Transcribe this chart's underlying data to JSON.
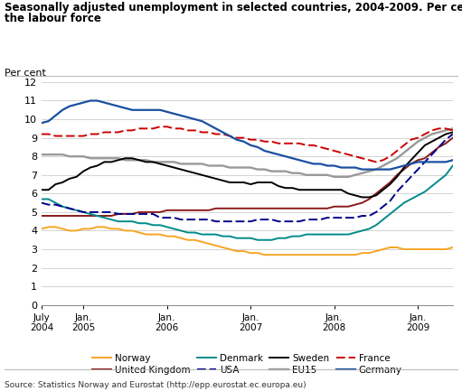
{
  "title_line1": "Seasonally adjusted unemployment in selected countries, 2004-2009. Per cent of",
  "title_line2": "the labour force",
  "ylabel": "Per cent",
  "source": "Source: Statistics Norway and Eurostat (http://epp.eurostat.ec.europa.eu)",
  "ylim": [
    0,
    12
  ],
  "yticks": [
    0,
    1,
    2,
    3,
    4,
    5,
    6,
    7,
    8,
    9,
    10,
    11,
    12
  ],
  "xtick_labels": [
    "July\n2004",
    "Jan.\n2005",
    "Jan.\n2006",
    "Jan.\n2007",
    "Jan.\n2008",
    "Jan.\n2009"
  ],
  "xtick_positions": [
    0,
    6,
    18,
    30,
    42,
    54
  ],
  "n_months": 60,
  "norway": [
    4.1,
    4.2,
    4.2,
    4.1,
    4.0,
    4.0,
    4.1,
    4.1,
    4.2,
    4.2,
    4.1,
    4.1,
    4.0,
    4.0,
    3.9,
    3.8,
    3.8,
    3.8,
    3.7,
    3.7,
    3.6,
    3.5,
    3.5,
    3.4,
    3.3,
    3.2,
    3.1,
    3.0,
    2.9,
    2.9,
    2.8,
    2.8,
    2.7,
    2.7,
    2.7,
    2.7,
    2.7,
    2.7,
    2.7,
    2.7,
    2.7,
    2.7,
    2.7,
    2.7,
    2.7,
    2.7,
    2.8,
    2.8,
    2.9,
    3.0,
    3.1,
    3.1,
    3.0,
    3.0,
    3.0,
    3.0,
    3.0,
    3.0,
    3.0,
    3.1
  ],
  "uk": [
    4.8,
    4.8,
    4.8,
    4.8,
    4.8,
    4.8,
    4.8,
    4.8,
    4.8,
    4.8,
    4.8,
    4.9,
    4.9,
    4.9,
    5.0,
    5.0,
    5.0,
    5.0,
    5.1,
    5.1,
    5.1,
    5.1,
    5.1,
    5.1,
    5.1,
    5.2,
    5.2,
    5.2,
    5.2,
    5.2,
    5.2,
    5.2,
    5.2,
    5.2,
    5.2,
    5.2,
    5.2,
    5.2,
    5.2,
    5.2,
    5.2,
    5.2,
    5.3,
    5.3,
    5.3,
    5.4,
    5.5,
    5.7,
    6.0,
    6.3,
    6.6,
    7.0,
    7.3,
    7.6,
    7.8,
    7.9,
    8.2,
    8.5,
    8.7,
    9.0
  ],
  "denmark": [
    5.7,
    5.7,
    5.5,
    5.3,
    5.2,
    5.1,
    5.0,
    4.9,
    4.8,
    4.7,
    4.6,
    4.5,
    4.5,
    4.5,
    4.4,
    4.4,
    4.3,
    4.3,
    4.2,
    4.1,
    4.0,
    3.9,
    3.9,
    3.8,
    3.8,
    3.8,
    3.7,
    3.7,
    3.6,
    3.6,
    3.6,
    3.5,
    3.5,
    3.5,
    3.6,
    3.6,
    3.7,
    3.7,
    3.8,
    3.8,
    3.8,
    3.8,
    3.8,
    3.8,
    3.8,
    3.9,
    4.0,
    4.1,
    4.3,
    4.6,
    4.9,
    5.2,
    5.5,
    5.7,
    5.9,
    6.1,
    6.4,
    6.7,
    7.0,
    7.5
  ],
  "usa": [
    5.5,
    5.4,
    5.4,
    5.3,
    5.2,
    5.1,
    5.0,
    5.0,
    5.0,
    5.0,
    5.0,
    4.9,
    4.9,
    4.9,
    4.9,
    4.9,
    4.9,
    4.7,
    4.7,
    4.7,
    4.6,
    4.6,
    4.6,
    4.6,
    4.6,
    4.5,
    4.5,
    4.5,
    4.5,
    4.5,
    4.5,
    4.6,
    4.6,
    4.6,
    4.5,
    4.5,
    4.5,
    4.5,
    4.6,
    4.6,
    4.6,
    4.7,
    4.7,
    4.7,
    4.7,
    4.7,
    4.8,
    4.8,
    5.0,
    5.3,
    5.6,
    6.1,
    6.5,
    6.9,
    7.3,
    7.7,
    8.1,
    8.5,
    8.9,
    9.2
  ],
  "sweden": [
    6.2,
    6.2,
    6.5,
    6.6,
    6.8,
    6.9,
    7.2,
    7.4,
    7.5,
    7.7,
    7.7,
    7.8,
    7.9,
    7.9,
    7.8,
    7.7,
    7.7,
    7.6,
    7.5,
    7.4,
    7.3,
    7.2,
    7.1,
    7.0,
    6.9,
    6.8,
    6.7,
    6.6,
    6.6,
    6.6,
    6.5,
    6.6,
    6.6,
    6.6,
    6.4,
    6.3,
    6.3,
    6.2,
    6.2,
    6.2,
    6.2,
    6.2,
    6.2,
    6.2,
    6.0,
    5.9,
    5.8,
    5.8,
    5.9,
    6.2,
    6.5,
    6.9,
    7.4,
    7.8,
    8.2,
    8.6,
    8.8,
    9.0,
    9.2,
    9.3
  ],
  "eu15": [
    8.1,
    8.1,
    8.1,
    8.1,
    8.0,
    8.0,
    8.0,
    7.9,
    7.9,
    7.9,
    7.9,
    7.9,
    7.8,
    7.8,
    7.8,
    7.8,
    7.7,
    7.7,
    7.7,
    7.7,
    7.6,
    7.6,
    7.6,
    7.6,
    7.5,
    7.5,
    7.5,
    7.4,
    7.4,
    7.4,
    7.4,
    7.3,
    7.3,
    7.2,
    7.2,
    7.2,
    7.1,
    7.1,
    7.0,
    7.0,
    7.0,
    7.0,
    6.9,
    6.9,
    6.9,
    7.0,
    7.1,
    7.2,
    7.3,
    7.5,
    7.7,
    7.9,
    8.2,
    8.5,
    8.8,
    9.0,
    9.2,
    9.3,
    9.4,
    9.5
  ],
  "france": [
    9.2,
    9.2,
    9.1,
    9.1,
    9.1,
    9.1,
    9.1,
    9.2,
    9.2,
    9.3,
    9.3,
    9.3,
    9.4,
    9.4,
    9.5,
    9.5,
    9.5,
    9.6,
    9.6,
    9.5,
    9.5,
    9.4,
    9.4,
    9.3,
    9.3,
    9.2,
    9.2,
    9.1,
    9.0,
    9.0,
    8.9,
    8.9,
    8.8,
    8.8,
    8.7,
    8.7,
    8.7,
    8.7,
    8.6,
    8.6,
    8.5,
    8.4,
    8.3,
    8.2,
    8.1,
    8.0,
    7.9,
    7.8,
    7.7,
    7.8,
    8.0,
    8.3,
    8.6,
    8.9,
    9.0,
    9.2,
    9.4,
    9.5,
    9.5,
    9.4
  ],
  "germany": [
    9.8,
    9.9,
    10.2,
    10.5,
    10.7,
    10.8,
    10.9,
    11.0,
    11.0,
    10.9,
    10.8,
    10.7,
    10.6,
    10.5,
    10.5,
    10.5,
    10.5,
    10.5,
    10.4,
    10.3,
    10.2,
    10.1,
    10.0,
    9.9,
    9.7,
    9.5,
    9.3,
    9.1,
    8.9,
    8.8,
    8.6,
    8.5,
    8.3,
    8.2,
    8.1,
    8.0,
    7.9,
    7.8,
    7.7,
    7.6,
    7.6,
    7.5,
    7.5,
    7.4,
    7.4,
    7.4,
    7.3,
    7.3,
    7.3,
    7.3,
    7.3,
    7.4,
    7.5,
    7.6,
    7.7,
    7.7,
    7.7,
    7.7,
    7.7,
    7.8
  ],
  "colors": {
    "norway": "#f5a623",
    "uk": "#8b1a1a",
    "denmark": "#008b8b",
    "usa": "#00008b",
    "sweden": "#000000",
    "eu15": "#999999",
    "france": "#cc0000",
    "germany": "#1a4fa0"
  }
}
